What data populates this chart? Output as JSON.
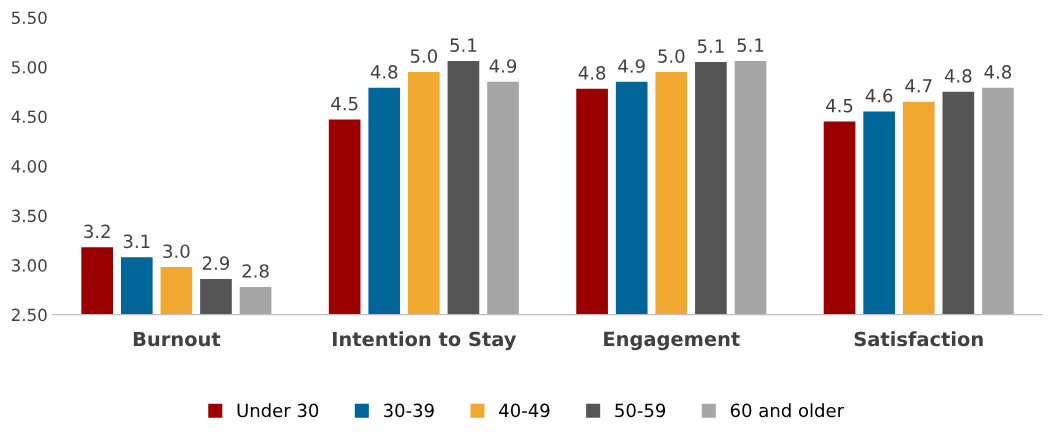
{
  "chart_data": {
    "type": "bar",
    "categories": [
      "Burnout",
      "Intention to Stay",
      "Engagement",
      "Satisfaction"
    ],
    "series": [
      {
        "name": "Under 30",
        "color": "#9b0000",
        "values": [
          3.18,
          4.47,
          4.78,
          4.45
        ],
        "value_labels": [
          "3.2",
          "4.5",
          "4.8",
          "4.5"
        ]
      },
      {
        "name": "30-39",
        "color": "#006699",
        "values": [
          3.08,
          4.79,
          4.85,
          4.55
        ],
        "value_labels": [
          "3.1",
          "4.8",
          "4.9",
          "4.6"
        ]
      },
      {
        "name": "40-49",
        "color": "#f0a830",
        "values": [
          2.98,
          4.95,
          4.95,
          4.65
        ],
        "value_labels": [
          "3.0",
          "5.0",
          "5.0",
          "4.7"
        ]
      },
      {
        "name": "50-59",
        "color": "#555555",
        "values": [
          2.86,
          5.06,
          5.05,
          4.75
        ],
        "value_labels": [
          "2.9",
          "5.1",
          "5.1",
          "4.8"
        ]
      },
      {
        "name": "60 and older",
        "color": "#a6a6a6",
        "values": [
          2.78,
          4.85,
          5.06,
          4.79
        ],
        "value_labels": [
          "2.8",
          "4.9",
          "5.1",
          "4.8"
        ]
      }
    ],
    "ylim": [
      2.5,
      5.5
    ],
    "yticks": [
      {
        "value": 2.5,
        "label": "2.50"
      },
      {
        "value": 3.0,
        "label": "3.00"
      },
      {
        "value": 3.5,
        "label": "3.50"
      },
      {
        "value": 4.0,
        "label": "4.00"
      },
      {
        "value": 4.5,
        "label": "4.50"
      },
      {
        "value": 5.0,
        "label": "5.00"
      },
      {
        "value": 5.5,
        "label": "5.50"
      }
    ],
    "grid": false,
    "legend": "bottom"
  }
}
